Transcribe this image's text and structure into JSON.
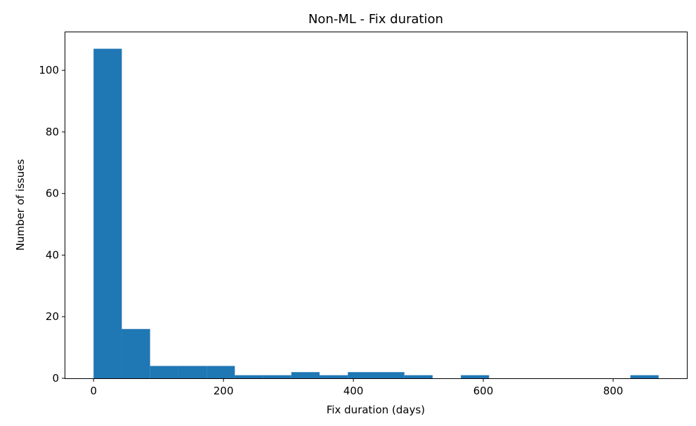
{
  "chart_data": {
    "type": "bar",
    "title": "Non-ML - Fix duration",
    "xlabel": "Fix duration (days)",
    "ylabel": "Number of issues",
    "xlim": [
      -43.5,
      913.5
    ],
    "ylim": [
      0,
      112.35
    ],
    "xticks": [
      0,
      200,
      400,
      600,
      800
    ],
    "yticks": [
      0,
      20,
      40,
      60,
      80,
      100
    ],
    "bin_edges": [
      0,
      43.5,
      87,
      130.5,
      174,
      217.5,
      261,
      304.5,
      348,
      391.5,
      435,
      478.5,
      522,
      565.5,
      609,
      652.5,
      696,
      739.5,
      783,
      826.5,
      870
    ],
    "values": [
      107,
      16,
      4,
      4,
      4,
      1,
      1,
      2,
      1,
      2,
      2,
      1,
      0,
      1,
      0,
      0,
      0,
      0,
      0,
      1
    ],
    "bar_color": "#1f77b4",
    "grid": false,
    "legend": "none"
  }
}
